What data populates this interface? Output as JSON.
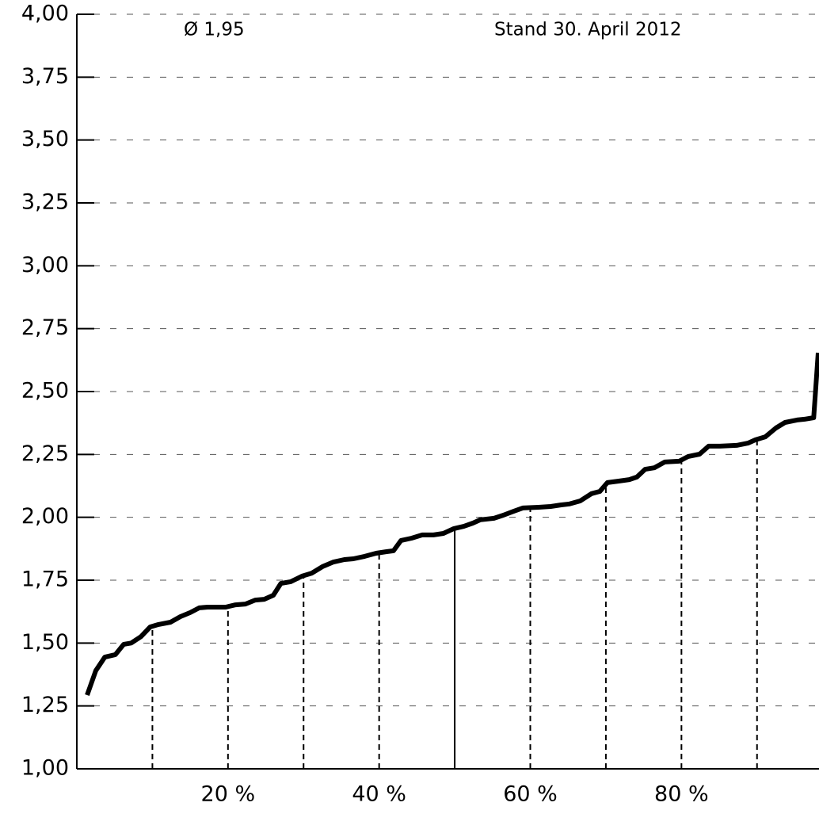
{
  "chart_data": {
    "type": "line",
    "annotations": [
      "Ø 1,95",
      "Stand 30. April 2012"
    ],
    "x": [
      1.36,
      2.5,
      3.7,
      5.1,
      6.2,
      7.2,
      8.5,
      9.7,
      10.8,
      12.4,
      13.7,
      15.0,
      16.2,
      17.3,
      19.7,
      21.0,
      22.3,
      23.6,
      24.8,
      26.0,
      27.0,
      28.3,
      29.8,
      31.1,
      32.5,
      33.9,
      35.4,
      36.6,
      38.1,
      39.6,
      40.9,
      41.9,
      42.9,
      44.3,
      45.7,
      47.2,
      48.5,
      49.9,
      51.2,
      52.4,
      53.4,
      55.2,
      56.4,
      57.8,
      59.0,
      61.1,
      62.7,
      64.0,
      65.2,
      66.6,
      68.1,
      69.2,
      70.2,
      71.7,
      73.1,
      74.1,
      75.2,
      76.4,
      77.8,
      79.7,
      80.9,
      82.4,
      83.6,
      85.1,
      87.3,
      88.8,
      89.8,
      91.1,
      92.5,
      93.7,
      95.3,
      96.3,
      97.5,
      98.1
    ],
    "values": [
      1.293,
      1.39,
      1.444,
      1.454,
      1.495,
      1.5,
      1.526,
      1.564,
      1.574,
      1.583,
      1.605,
      1.621,
      1.64,
      1.643,
      1.643,
      1.652,
      1.655,
      1.671,
      1.674,
      1.69,
      1.737,
      1.744,
      1.766,
      1.778,
      1.804,
      1.822,
      1.832,
      1.835,
      1.845,
      1.857,
      1.863,
      1.867,
      1.908,
      1.917,
      1.93,
      1.93,
      1.936,
      1.955,
      1.964,
      1.977,
      1.99,
      1.996,
      2.008,
      2.024,
      2.037,
      2.04,
      2.043,
      2.049,
      2.053,
      2.065,
      2.094,
      2.103,
      2.138,
      2.144,
      2.15,
      2.16,
      2.191,
      2.197,
      2.22,
      2.223,
      2.242,
      2.251,
      2.283,
      2.283,
      2.286,
      2.295,
      2.308,
      2.32,
      2.355,
      2.377,
      2.387,
      2.39,
      2.396,
      2.654
    ],
    "color": "#000000",
    "xlim": [
      0,
      98.2
    ],
    "xticks": [
      {
        "value": 20,
        "label": "20 %"
      },
      {
        "value": 40,
        "label": "40 %"
      },
      {
        "value": 60,
        "label": "60 %"
      },
      {
        "value": 80,
        "label": "80 %"
      }
    ],
    "ylim": [
      1,
      4
    ],
    "yticks": [
      {
        "value": 1,
        "label": "1,00"
      },
      {
        "value": 1.25,
        "label": "1,25"
      },
      {
        "value": 1.5,
        "label": "1,50"
      },
      {
        "value": 1.75,
        "label": "1,75"
      },
      {
        "value": 2,
        "label": "2,00"
      },
      {
        "value": 2.25,
        "label": "2,25"
      },
      {
        "value": 2.5,
        "label": "2,50"
      },
      {
        "value": 2.75,
        "label": "2,75"
      },
      {
        "value": 3,
        "label": "3,00"
      },
      {
        "value": 3.25,
        "label": "3,25"
      },
      {
        "value": 3.5,
        "label": "3,50"
      },
      {
        "value": 3.75,
        "label": "3,75"
      },
      {
        "value": 4,
        "label": "4,00"
      }
    ],
    "grid": true,
    "drop_lines": [
      10,
      20,
      30,
      40,
      60,
      70,
      80,
      90
    ],
    "median_line": 50
  }
}
